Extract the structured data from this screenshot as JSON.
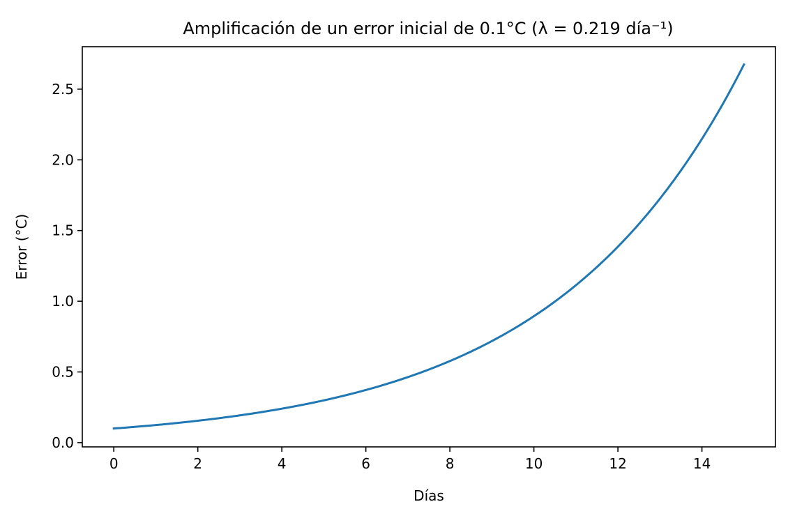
{
  "chart_data": {
    "type": "line",
    "title": "Amplificación de un error inicial de 0.1°C (λ = 0.219 día⁻¹)",
    "xlabel": "Días",
    "ylabel": "Error (°C)",
    "xlim": [
      -0.75,
      15.75
    ],
    "ylim": [
      -0.03,
      2.8
    ],
    "xticks": [
      0,
      2,
      4,
      6,
      8,
      10,
      12,
      14
    ],
    "yticks": [
      0.0,
      0.5,
      1.0,
      1.5,
      2.0,
      2.5
    ],
    "xtick_labels": [
      "0",
      "2",
      "4",
      "6",
      "8",
      "10",
      "12",
      "14"
    ],
    "ytick_labels": [
      "0.0",
      "0.5",
      "1.0",
      "1.5",
      "2.0",
      "2.5"
    ],
    "grid": false,
    "colors": {
      "line": "#1f77b4",
      "axes": "#000000"
    },
    "series": [
      {
        "x": [
          0,
          1,
          2,
          3,
          4,
          5,
          6,
          7,
          8,
          9,
          10,
          11,
          12,
          13,
          14,
          15
        ],
        "y": [
          0.1,
          0.125,
          0.155,
          0.193,
          0.24,
          0.299,
          0.372,
          0.464,
          0.577,
          0.718,
          0.894,
          1.113,
          1.386,
          1.725,
          2.148,
          2.674
        ]
      }
    ]
  }
}
